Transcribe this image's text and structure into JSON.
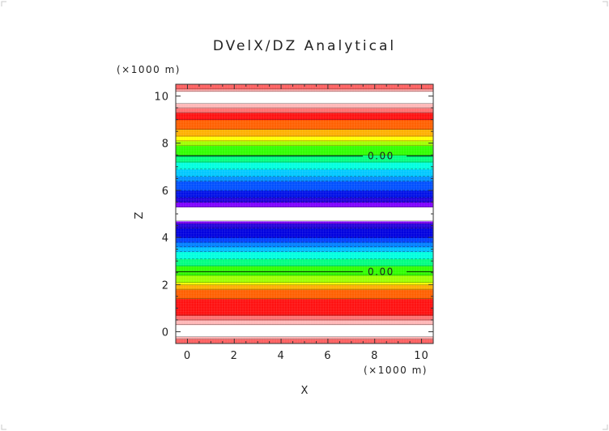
{
  "chart_data": {
    "type": "heatmap",
    "title": "DVelX/DZ Analytical",
    "xlabel": "X",
    "ylabel": "Z",
    "x_unit": "(×1000 m)",
    "y_unit": "(×1000 m)",
    "xlim": [
      -0.5,
      10.5
    ],
    "ylim": [
      -0.5,
      10.5
    ],
    "x_ticks": [
      0,
      2,
      4,
      6,
      8,
      10
    ],
    "y_ticks": [
      0,
      2,
      4,
      6,
      8,
      10
    ],
    "grid": false,
    "colormap": [
      "#7f00ff",
      "#0000d0",
      "#0000ff",
      "#0060ff",
      "#00a0ff",
      "#00ffff",
      "#00ff80",
      "#00ff00",
      "#80ff00",
      "#ffff00",
      "#ffa000",
      "#ff5000",
      "#ff0000",
      "#ff8080",
      "#ffffff"
    ],
    "bands": [
      {
        "z0": -0.5,
        "z1": -0.3,
        "color": "#ff6060"
      },
      {
        "z0": -0.3,
        "z1": -0.2,
        "color": "#ffb0b0"
      },
      {
        "z0": -0.2,
        "z1": 0.3,
        "color": "#ffffff"
      },
      {
        "z0": 0.3,
        "z1": 0.5,
        "color": "#ffb8b8"
      },
      {
        "z0": 0.5,
        "z1": 0.7,
        "color": "#ff7070"
      },
      {
        "z0": 0.7,
        "z1": 1.4,
        "color": "#ff1010"
      },
      {
        "z0": 1.4,
        "z1": 1.8,
        "color": "#ff6000"
      },
      {
        "z0": 1.8,
        "z1": 2.0,
        "color": "#ffb000"
      },
      {
        "z0": 2.0,
        "z1": 2.1,
        "color": "#ffff00"
      },
      {
        "z0": 2.1,
        "z1": 2.4,
        "color": "#a0ff00"
      },
      {
        "z0": 2.4,
        "z1": 2.8,
        "color": "#30ff00"
      },
      {
        "z0": 2.8,
        "z1": 3.1,
        "color": "#00ff80"
      },
      {
        "z0": 3.1,
        "z1": 3.4,
        "color": "#00ffe0"
      },
      {
        "z0": 3.4,
        "z1": 3.6,
        "color": "#00c0ff"
      },
      {
        "z0": 3.6,
        "z1": 3.8,
        "color": "#0080ff"
      },
      {
        "z0": 3.8,
        "z1": 4.0,
        "color": "#0040ff"
      },
      {
        "z0": 4.0,
        "z1": 4.4,
        "color": "#0000e0"
      },
      {
        "z0": 4.4,
        "z1": 4.6,
        "color": "#2000d8"
      },
      {
        "z0": 4.6,
        "z1": 4.7,
        "color": "#7f00ff"
      },
      {
        "z0": 4.7,
        "z1": 5.3,
        "color": "#ffffff"
      },
      {
        "z0": 5.3,
        "z1": 5.5,
        "color": "#7f00ff"
      },
      {
        "z0": 5.5,
        "z1": 5.7,
        "color": "#2000d8"
      },
      {
        "z0": 5.7,
        "z1": 6.0,
        "color": "#0010e8"
      },
      {
        "z0": 6.0,
        "z1": 6.4,
        "color": "#0050ff"
      },
      {
        "z0": 6.4,
        "z1": 6.6,
        "color": "#0090ff"
      },
      {
        "z0": 6.6,
        "z1": 6.9,
        "color": "#00c8ff"
      },
      {
        "z0": 6.9,
        "z1": 7.2,
        "color": "#00ffe0"
      },
      {
        "z0": 7.2,
        "z1": 7.5,
        "color": "#00ff80"
      },
      {
        "z0": 7.5,
        "z1": 7.9,
        "color": "#30ff00"
      },
      {
        "z0": 7.9,
        "z1": 8.1,
        "color": "#a0ff00"
      },
      {
        "z0": 8.1,
        "z1": 8.3,
        "color": "#ffff00"
      },
      {
        "z0": 8.3,
        "z1": 8.6,
        "color": "#ffb000"
      },
      {
        "z0": 8.6,
        "z1": 9.0,
        "color": "#ff6000"
      },
      {
        "z0": 9.0,
        "z1": 9.3,
        "color": "#ff1010"
      },
      {
        "z0": 9.3,
        "z1": 9.5,
        "color": "#ff7070"
      },
      {
        "z0": 9.5,
        "z1": 9.7,
        "color": "#ffb8b8"
      },
      {
        "z0": 9.7,
        "z1": 10.2,
        "color": "#ffffff"
      },
      {
        "z0": 10.2,
        "z1": 10.3,
        "color": "#ffb0b0"
      },
      {
        "z0": 10.3,
        "z1": 10.5,
        "color": "#ff6060"
      }
    ],
    "contours": [
      {
        "z": 2.55,
        "label": "0.00",
        "label_x": 7.7
      },
      {
        "z": 7.45,
        "label": "0.00",
        "label_x": 7.7
      }
    ]
  }
}
